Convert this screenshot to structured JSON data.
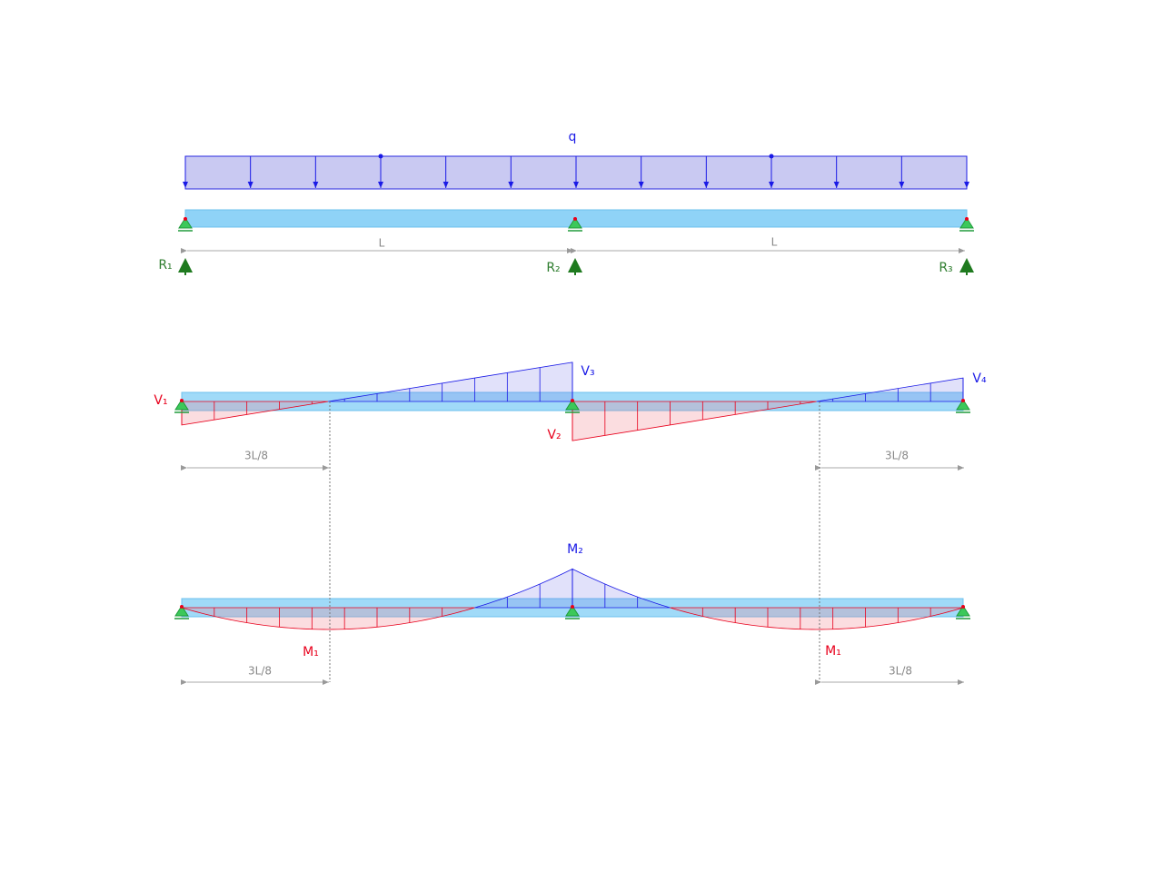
{
  "load": {
    "label": "q"
  },
  "spans": [
    "L",
    "L"
  ],
  "reactions": [
    "R₁",
    "R₂",
    "R₃"
  ],
  "shear": {
    "labels": [
      "V₁",
      "V₂",
      "V₃",
      "V₄"
    ],
    "dimensions": [
      "3L/8",
      "3L/8"
    ]
  },
  "moment": {
    "labels": [
      "M₂",
      "M₁",
      "M₁"
    ],
    "dimensions": [
      "3L/8",
      "3L/8"
    ]
  }
}
